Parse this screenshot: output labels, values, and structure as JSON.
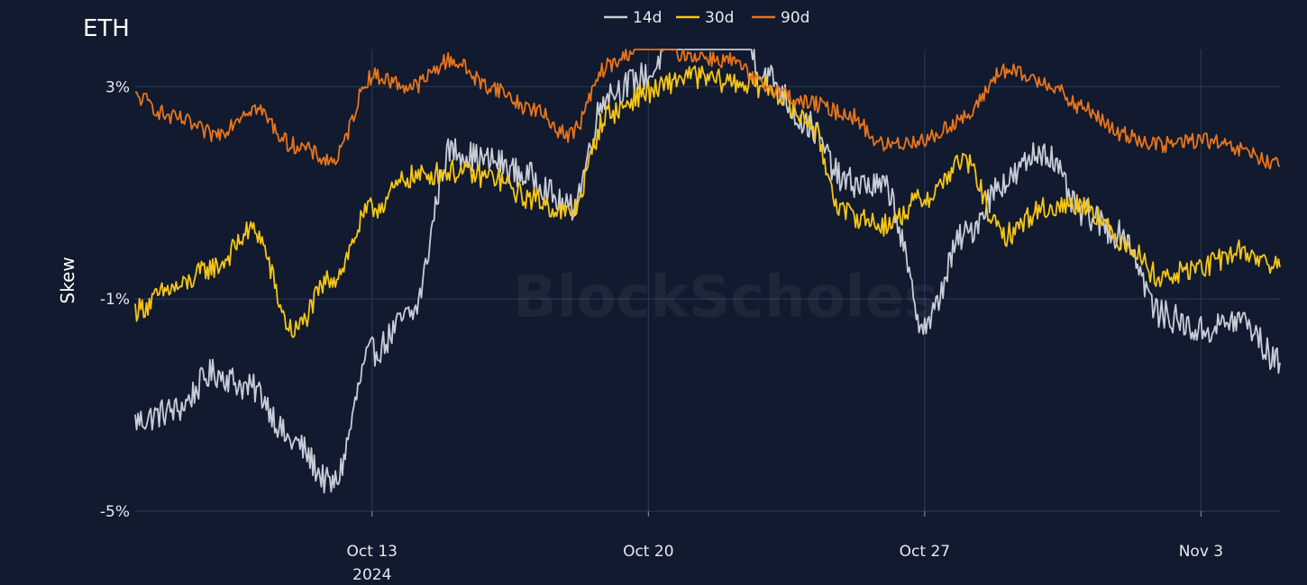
{
  "chart_data": {
    "type": "line",
    "title": "ETH",
    "ylabel": "Skew",
    "xlabel": "",
    "legend_position": "top-center",
    "grid": true,
    "x_range": [
      "2024-10-07",
      "2024-11-05"
    ],
    "ylim": [
      -5,
      3.7
    ],
    "y_ticks": [
      {
        "value": 3,
        "label": "3%"
      },
      {
        "value": -1,
        "label": "-1%"
      },
      {
        "value": -5,
        "label": "-5%"
      }
    ],
    "x_ticks": [
      {
        "date": "2024-10-13",
        "label": "Oct 13",
        "sublabel": "2024"
      },
      {
        "date": "2024-10-20",
        "label": "Oct 20",
        "sublabel": ""
      },
      {
        "date": "2024-10-27",
        "label": "Oct 27",
        "sublabel": ""
      },
      {
        "date": "2024-11-03",
        "label": "Nov 3",
        "sublabel": ""
      }
    ],
    "watermark": "BlockScholes",
    "series": [
      {
        "name": "14d",
        "color": "#c8ccd6",
        "points": [
          [
            "2024-10-07",
            -3.3
          ],
          [
            "2024-10-08",
            -3.1
          ],
          [
            "2024-10-09",
            -2.4
          ],
          [
            "2024-10-10",
            -2.7
          ],
          [
            "2024-10-11",
            -3.7
          ],
          [
            "2024-10-12",
            -4.5
          ],
          [
            "2024-10-13",
            -2.0
          ],
          [
            "2024-10-14",
            -1.3
          ],
          [
            "2024-10-15",
            1.8
          ],
          [
            "2024-10-16",
            1.6
          ],
          [
            "2024-10-17",
            1.3
          ],
          [
            "2024-10-18",
            0.7
          ],
          [
            "2024-10-19",
            2.9
          ],
          [
            "2024-10-20",
            3.2
          ],
          [
            "2024-10-21",
            5.0
          ],
          [
            "2024-10-22",
            4.8
          ],
          [
            "2024-10-23",
            3.2
          ],
          [
            "2024-10-24",
            2.3
          ],
          [
            "2024-10-25",
            1.2
          ],
          [
            "2024-10-26",
            1.1
          ],
          [
            "2024-10-27",
            -1.5
          ],
          [
            "2024-10-28",
            0.2
          ],
          [
            "2024-10-29",
            1.2
          ],
          [
            "2024-10-30",
            1.8
          ],
          [
            "2024-10-31",
            0.6
          ],
          [
            "2024-11-01",
            0.2
          ],
          [
            "2024-11-02",
            -1.3
          ],
          [
            "2024-11-03",
            -1.6
          ],
          [
            "2024-11-04",
            -1.4
          ],
          [
            "2024-11-05",
            -2.2
          ]
        ]
      },
      {
        "name": "30d",
        "color": "#f5c518",
        "points": [
          [
            "2024-10-07",
            -1.2
          ],
          [
            "2024-10-08",
            -0.8
          ],
          [
            "2024-10-09",
            -0.4
          ],
          [
            "2024-10-10",
            0.3
          ],
          [
            "2024-10-11",
            -1.6
          ],
          [
            "2024-10-12",
            -0.6
          ],
          [
            "2024-10-13",
            0.7
          ],
          [
            "2024-10-14",
            1.3
          ],
          [
            "2024-10-15",
            1.4
          ],
          [
            "2024-10-16",
            1.3
          ],
          [
            "2024-10-17",
            0.9
          ],
          [
            "2024-10-18",
            0.6
          ],
          [
            "2024-10-19",
            2.5
          ],
          [
            "2024-10-20",
            2.9
          ],
          [
            "2024-10-21",
            3.2
          ],
          [
            "2024-10-22",
            3.1
          ],
          [
            "2024-10-23",
            3.0
          ],
          [
            "2024-10-24",
            2.4
          ],
          [
            "2024-10-25",
            0.6
          ],
          [
            "2024-10-26",
            0.4
          ],
          [
            "2024-10-27",
            0.9
          ],
          [
            "2024-10-28",
            1.6
          ],
          [
            "2024-10-29",
            0.2
          ],
          [
            "2024-10-30",
            0.7
          ],
          [
            "2024-10-31",
            0.8
          ],
          [
            "2024-11-01",
            0.1
          ],
          [
            "2024-11-02",
            -0.6
          ],
          [
            "2024-11-03",
            -0.4
          ],
          [
            "2024-11-04",
            -0.1
          ],
          [
            "2024-11-05",
            -0.4
          ]
        ]
      },
      {
        "name": "90d",
        "color": "#e8741c",
        "points": [
          [
            "2024-10-07",
            2.8
          ],
          [
            "2024-10-08",
            2.4
          ],
          [
            "2024-10-09",
            2.1
          ],
          [
            "2024-10-10",
            2.6
          ],
          [
            "2024-10-11",
            1.9
          ],
          [
            "2024-10-12",
            1.6
          ],
          [
            "2024-10-13",
            3.2
          ],
          [
            "2024-10-14",
            3.0
          ],
          [
            "2024-10-15",
            3.5
          ],
          [
            "2024-10-16",
            3.0
          ],
          [
            "2024-10-17",
            2.6
          ],
          [
            "2024-10-18",
            2.1
          ],
          [
            "2024-10-19",
            3.4
          ],
          [
            "2024-10-20",
            3.9
          ],
          [
            "2024-10-21",
            3.6
          ],
          [
            "2024-10-22",
            3.5
          ],
          [
            "2024-10-23",
            3.0
          ],
          [
            "2024-10-24",
            2.7
          ],
          [
            "2024-10-25",
            2.5
          ],
          [
            "2024-10-26",
            1.9
          ],
          [
            "2024-10-27",
            2.0
          ],
          [
            "2024-10-28",
            2.4
          ],
          [
            "2024-10-29",
            3.3
          ],
          [
            "2024-10-30",
            3.1
          ],
          [
            "2024-10-31",
            2.6
          ],
          [
            "2024-11-01",
            2.1
          ],
          [
            "2024-11-02",
            1.9
          ],
          [
            "2024-11-03",
            2.0
          ],
          [
            "2024-11-04",
            1.8
          ],
          [
            "2024-11-05",
            1.5
          ]
        ]
      }
    ]
  }
}
